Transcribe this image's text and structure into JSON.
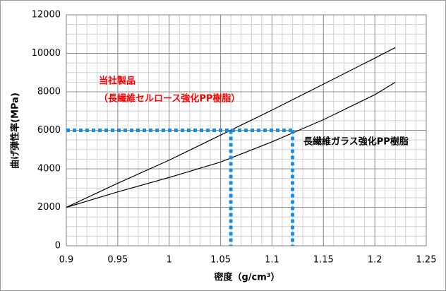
{
  "chart_data": {
    "type": "line",
    "x": [
      0.9,
      0.95,
      1.0,
      1.05,
      1.1,
      1.15,
      1.2,
      1.22
    ],
    "series": [
      {
        "color": "#000000",
        "values": [
          2000,
          3250,
          4450,
          5750,
          7050,
          8400,
          9750,
          10300
        ]
      },
      {
        "color": "#000000",
        "values": [
          2000,
          2800,
          3550,
          4350,
          5400,
          6550,
          7850,
          8500
        ]
      }
    ],
    "xlim": [
      0.9,
      1.25
    ],
    "ylim": [
      0,
      12000
    ],
    "xticks": [
      0.9,
      0.95,
      1,
      1.05,
      1.1,
      1.15,
      1.2,
      1.25
    ],
    "yticks": [
      0,
      2000,
      4000,
      6000,
      8000,
      10000,
      12000
    ],
    "grid": true,
    "minor_grid": {
      "x_step": 0.01,
      "y_step": 500
    },
    "xlabel": "密度（g/cm³）",
    "ylabel": "曲げ弾性率(MPa)",
    "reference": {
      "color": "#1a8fe0",
      "y": 6000,
      "x": [
        1.06,
        1.12
      ]
    },
    "annotations": [
      {
        "text": "当社製品",
        "color": "#ff0000"
      },
      {
        "text": "（長繊維セルロース強化PP樹脂）",
        "color": "#ff0000"
      },
      {
        "text": "長繊維ガラス強化PP樹脂",
        "color": "#000000"
      }
    ]
  }
}
